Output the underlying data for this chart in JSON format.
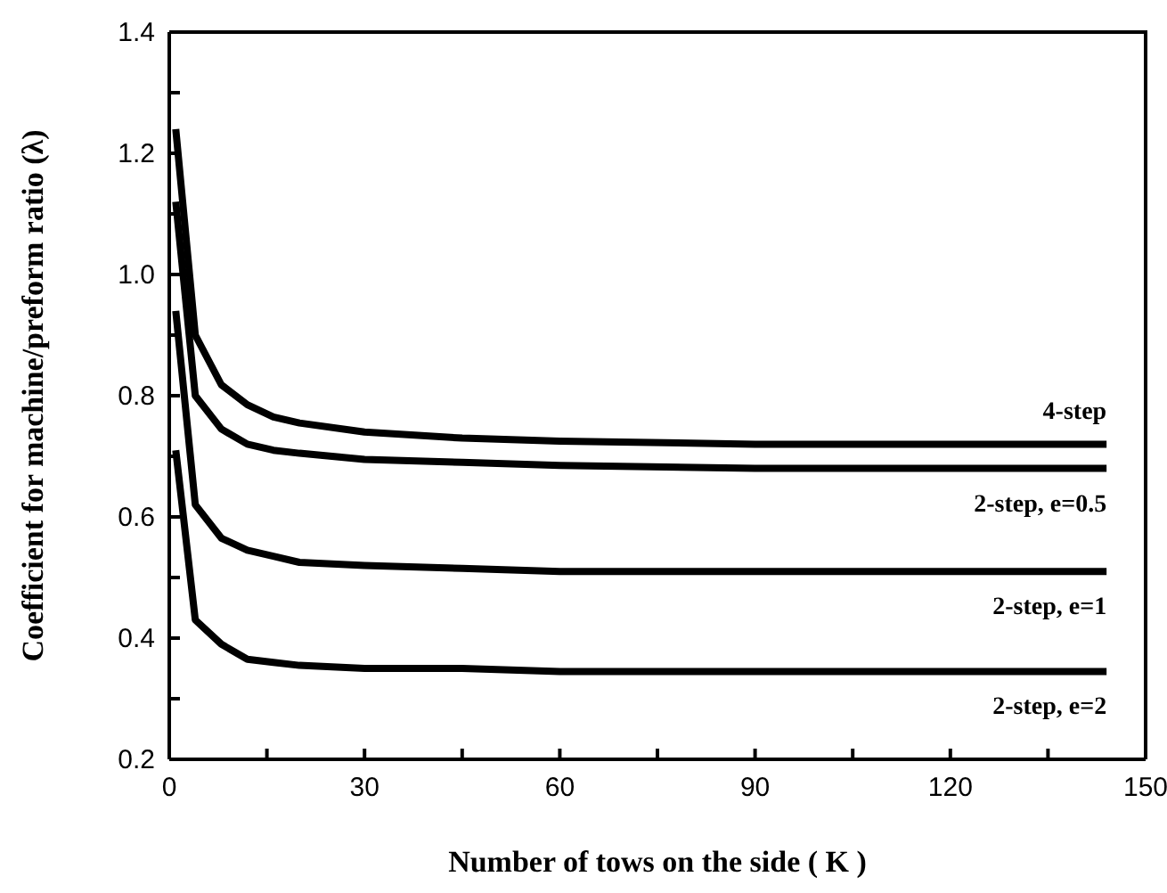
{
  "chart_data": {
    "type": "line",
    "xlabel": "Number of tows on the side ( K )",
    "ylabel": "Coefficient for machine/preform ratio (λ)",
    "xlim": [
      0,
      150
    ],
    "ylim": [
      0.2,
      1.4
    ],
    "xticks": [
      0,
      {
        "value": 15,
        "label": null
      },
      30,
      {
        "value": 45,
        "label": null
      },
      60,
      {
        "value": 75,
        "label": null
      },
      90,
      {
        "value": 105,
        "label": null
      },
      120,
      {
        "value": 135,
        "label": null
      },
      150
    ],
    "yticks": [
      {
        "value": 0.2,
        "label": "0.2"
      },
      {
        "value": 0.3,
        "label": null
      },
      {
        "value": 0.4,
        "label": "0.4"
      },
      {
        "value": 0.5,
        "label": null
      },
      {
        "value": 0.6,
        "label": "0.6"
      },
      {
        "value": 0.7,
        "label": null
      },
      {
        "value": 0.8,
        "label": "0.8"
      },
      {
        "value": 0.9,
        "label": null
      },
      {
        "value": 1.0,
        "label": "1.0"
      },
      {
        "value": 1.1,
        "label": null
      },
      {
        "value": 1.2,
        "label": "1.2"
      },
      {
        "value": 1.3,
        "label": null
      },
      {
        "value": 1.4,
        "label": "1.4"
      }
    ],
    "grid": false,
    "legend": false,
    "marker": "none",
    "line_style": "solid",
    "x": [
      1,
      4,
      8,
      12,
      16,
      20,
      30,
      45,
      60,
      90,
      120,
      144
    ],
    "series": [
      {
        "name": "4-step",
        "color": "#000000",
        "values": [
          1.24,
          0.9,
          0.818,
          0.785,
          0.765,
          0.755,
          0.74,
          0.73,
          0.725,
          0.72,
          0.72,
          0.72
        ]
      },
      {
        "name": "2-step, e=0.5",
        "color": "#000000",
        "values": [
          1.12,
          0.8,
          0.745,
          0.72,
          0.71,
          0.705,
          0.695,
          0.69,
          0.685,
          0.68,
          0.68,
          0.68
        ]
      },
      {
        "name": "2-step, e=1",
        "color": "#000000",
        "values": [
          0.94,
          0.62,
          0.565,
          0.545,
          0.535,
          0.525,
          0.52,
          0.515,
          0.51,
          0.51,
          0.51,
          0.51
        ]
      },
      {
        "name": "2-step, e=2",
        "color": "#000000",
        "values": [
          0.71,
          0.43,
          0.39,
          0.365,
          0.36,
          0.355,
          0.35,
          0.35,
          0.345,
          0.345,
          0.345,
          0.345
        ]
      }
    ]
  }
}
